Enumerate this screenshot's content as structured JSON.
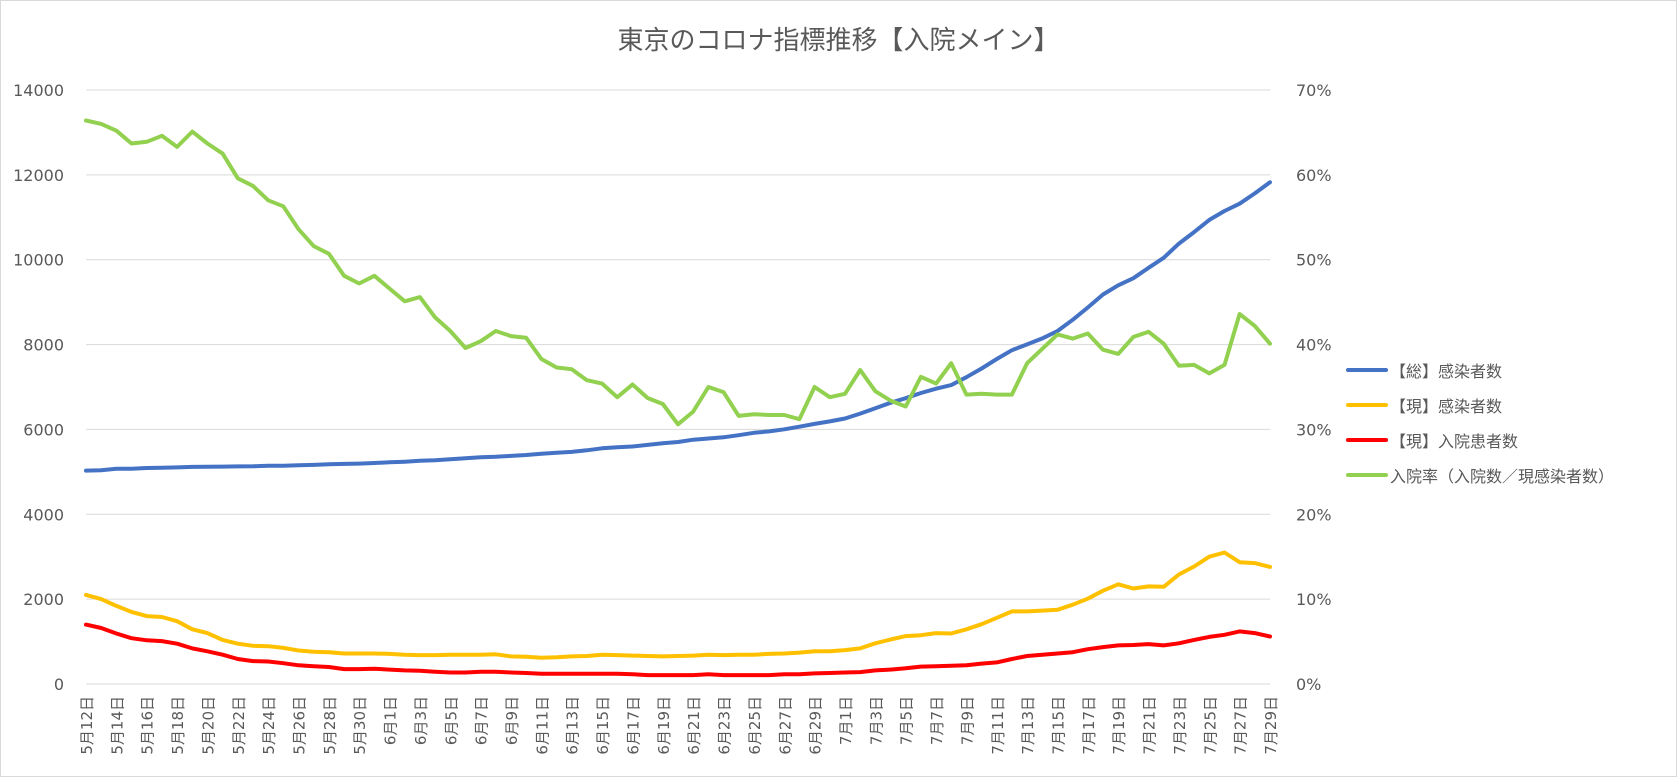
{
  "chart_data": {
    "type": "line",
    "title": "東京のコロナ指標推移【入院メイン】",
    "x": [
      "5月12日",
      "5月13日",
      "5月14日",
      "5月15日",
      "5月16日",
      "5月17日",
      "5月18日",
      "5月19日",
      "5月20日",
      "5月21日",
      "5月22日",
      "5月23日",
      "5月24日",
      "5月25日",
      "5月26日",
      "5月27日",
      "5月28日",
      "5月29日",
      "5月30日",
      "5月31日",
      "6月1日",
      "6月2日",
      "6月3日",
      "6月4日",
      "6月5日",
      "6月6日",
      "6月7日",
      "6月8日",
      "6月9日",
      "6月10日",
      "6月11日",
      "6月12日",
      "6月13日",
      "6月14日",
      "6月15日",
      "6月16日",
      "6月17日",
      "6月18日",
      "6月19日",
      "6月20日",
      "6月21日",
      "6月22日",
      "6月23日",
      "6月24日",
      "6月25日",
      "6月26日",
      "6月27日",
      "6月28日",
      "6月29日",
      "6月30日",
      "7月1日",
      "7月2日",
      "7月3日",
      "7月4日",
      "7月5日",
      "7月6日",
      "7月7日",
      "7月8日",
      "7月9日",
      "7月10日",
      "7月11日",
      "7月12日",
      "7月13日",
      "7月14日",
      "7月15日",
      "7月16日",
      "7月17日",
      "7月18日",
      "7月19日",
      "7月20日",
      "7月21日",
      "7月22日",
      "7月23日",
      "7月24日",
      "7月25日",
      "7月26日",
      "7月27日",
      "7月28日",
      "7月29日"
    ],
    "x_tick_labels": [
      "5月12日",
      "5月14日",
      "5月16日",
      "5月18日",
      "5月20日",
      "5月22日",
      "5月24日",
      "5月26日",
      "5月28日",
      "5月30日",
      "6月1日",
      "6月3日",
      "6月5日",
      "6月7日",
      "6月9日",
      "6月11日",
      "6月13日",
      "6月15日",
      "6月17日",
      "6月19日",
      "6月21日",
      "6月23日",
      "6月25日",
      "6月27日",
      "6月29日",
      "7月1日",
      "7月3日",
      "7月5日",
      "7月7日",
      "7月9日",
      "7月11日",
      "7月13日",
      "7月15日",
      "7月17日",
      "7月19日",
      "7月21日",
      "7月23日",
      "7月25日",
      "7月27日",
      "7月29日"
    ],
    "y_left": {
      "min": 0,
      "max": 14000,
      "ticks": [
        "0",
        "2000",
        "4000",
        "6000",
        "8000",
        "10000",
        "12000",
        "14000"
      ]
    },
    "y_right": {
      "min": 0,
      "max": 0.7,
      "ticks": [
        "0%",
        "10%",
        "20%",
        "30%",
        "40%",
        "50%",
        "60%",
        "70%"
      ]
    },
    "grid": true,
    "legend_position": "right",
    "series": [
      {
        "name": "【総】感染者数",
        "color": "#4472C4",
        "axis": "left",
        "values": [
          5029,
          5040,
          5073,
          5075,
          5090,
          5095,
          5105,
          5116,
          5122,
          5124,
          5128,
          5131,
          5144,
          5145,
          5158,
          5165,
          5177,
          5187,
          5195,
          5208,
          5225,
          5239,
          5260,
          5273,
          5299,
          5319,
          5345,
          5356,
          5377,
          5398,
          5427,
          5449,
          5470,
          5507,
          5556,
          5581,
          5597,
          5635,
          5674,
          5703,
          5757,
          5787,
          5815,
          5864,
          5920,
          5953,
          6004,
          6064,
          6130,
          6190,
          6258,
          6374,
          6498,
          6628,
          6736,
          6858,
          6961,
          7044,
          7230,
          7437,
          7660,
          7867,
          8003,
          8146,
          8319,
          8583,
          8873,
          9180,
          9397,
          9565,
          9810,
          10044,
          10380,
          10650,
          10938,
          11147,
          11320,
          11563,
          11825
        ]
      },
      {
        "name": "【現】感染者数",
        "color": "#FFC000",
        "axis": "left",
        "values": [
          2100,
          2000,
          1840,
          1700,
          1600,
          1580,
          1480,
          1290,
          1200,
          1040,
          950,
          900,
          890,
          850,
          790,
          760,
          750,
          720,
          720,
          720,
          710,
          690,
          680,
          680,
          690,
          690,
          690,
          700,
          650,
          640,
          620,
          630,
          650,
          660,
          690,
          680,
          670,
          660,
          650,
          660,
          670,
          690,
          680,
          690,
          690,
          710,
          720,
          740,
          770,
          770,
          800,
          840,
          960,
          1050,
          1130,
          1150,
          1200,
          1190,
          1290,
          1410,
          1560,
          1710,
          1710,
          1730,
          1750,
          1870,
          2010,
          2200,
          2350,
          2250,
          2300,
          2290,
          2580,
          2770,
          3000,
          3100,
          2870,
          2850,
          2760
        ]
      },
      {
        "name": "【現】入院患者数",
        "color": "#FF0000",
        "axis": "left",
        "values": [
          1400,
          1320,
          1190,
          1080,
          1030,
          1010,
          950,
          840,
          770,
          690,
          590,
          540,
          530,
          490,
          440,
          420,
          400,
          350,
          350,
          360,
          340,
          320,
          310,
          290,
          270,
          270,
          290,
          290,
          270,
          260,
          240,
          240,
          240,
          240,
          240,
          240,
          230,
          210,
          210,
          210,
          210,
          230,
          210,
          210,
          210,
          210,
          230,
          230,
          250,
          260,
          270,
          280,
          320,
          340,
          370,
          410,
          420,
          430,
          440,
          480,
          510,
          590,
          660,
          690,
          720,
          750,
          820,
          870,
          910,
          920,
          940,
          910,
          960,
          1040,
          1110,
          1160,
          1240,
          1200,
          1120
        ]
      },
      {
        "name": "入院率（入院数／現感染者数）",
        "color": "#92D050",
        "axis": "right",
        "values": [
          0.664,
          0.66,
          0.652,
          0.637,
          0.639,
          0.646,
          0.633,
          0.651,
          0.637,
          0.625,
          0.596,
          0.587,
          0.57,
          0.563,
          0.536,
          0.516,
          0.507,
          0.481,
          0.472,
          0.481,
          0.466,
          0.451,
          0.456,
          0.432,
          0.416,
          0.396,
          0.404,
          0.416,
          0.41,
          0.408,
          0.383,
          0.373,
          0.371,
          0.358,
          0.354,
          0.338,
          0.353,
          0.337,
          0.33,
          0.306,
          0.321,
          0.35,
          0.344,
          0.316,
          0.318,
          0.317,
          0.317,
          0.312,
          0.35,
          0.338,
          0.342,
          0.37,
          0.345,
          0.334,
          0.327,
          0.362,
          0.354,
          0.378,
          0.341,
          0.342,
          0.341,
          0.341,
          0.378,
          0.395,
          0.412,
          0.407,
          0.413,
          0.394,
          0.389,
          0.409,
          0.415,
          0.401,
          0.375,
          0.376,
          0.366,
          0.376,
          0.436,
          0.422,
          0.401
        ]
      }
    ]
  }
}
